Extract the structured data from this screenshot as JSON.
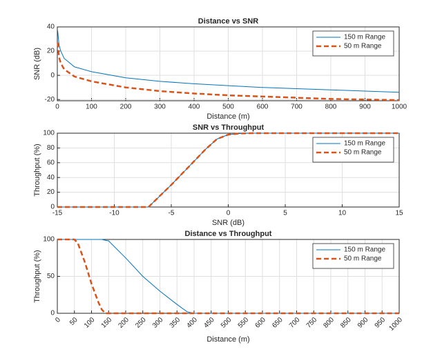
{
  "chart_data": [
    {
      "type": "line",
      "title": "Distance vs SNR",
      "xlabel": "Distance (m)",
      "ylabel": "SNR (dB)",
      "x": [
        1,
        5,
        10,
        20,
        50,
        100,
        200,
        300,
        400,
        500,
        600,
        700,
        800,
        900,
        1000
      ],
      "series": [
        {
          "name": "150 m Range",
          "color": "#0072bd",
          "style": "solid",
          "values": [
            37,
            25,
            20,
            14,
            7,
            3,
            -2,
            -5,
            -7,
            -8.5,
            -10,
            -11,
            -12,
            -13,
            -14
          ]
        },
        {
          "name": "50 m Range",
          "color": "#d95319",
          "style": "dashed",
          "values": [
            27,
            15,
            10,
            5,
            -1,
            -5,
            -10,
            -13,
            -15,
            -16.5,
            -17.5,
            -18.5,
            -19.5,
            -20,
            -20.5
          ]
        }
      ],
      "xlim": [
        0,
        1000
      ],
      "ylim": [
        -21,
        40
      ],
      "xticks": [
        0,
        100,
        200,
        300,
        400,
        500,
        600,
        700,
        800,
        900,
        1000
      ],
      "yticks": [
        -20,
        0,
        20,
        40
      ],
      "grid": true,
      "legend": "northeast"
    },
    {
      "type": "line",
      "title": "SNR vs Throughput",
      "xlabel": "SNR (dB)",
      "ylabel": "Throughput (%)",
      "x": [
        -15,
        -7,
        -6,
        -5,
        -4,
        -3,
        -2,
        -1,
        0,
        1,
        2,
        15
      ],
      "series": [
        {
          "name": "150 m Range",
          "color": "#0072bd",
          "style": "solid",
          "values": [
            0,
            0,
            15,
            30,
            46,
            62,
            78,
            92,
            98,
            99.5,
            100,
            100
          ]
        },
        {
          "name": "50 m Range",
          "color": "#d95319",
          "style": "dashed",
          "values": [
            0,
            0,
            15,
            30,
            46,
            62,
            78,
            92,
            98,
            99.5,
            100,
            100
          ]
        }
      ],
      "xlim": [
        -15,
        15
      ],
      "ylim": [
        0,
        100
      ],
      "xticks": [
        -15,
        -10,
        -5,
        0,
        5,
        10,
        15
      ],
      "yticks": [
        0,
        20,
        40,
        60,
        80,
        100
      ],
      "grid": true,
      "legend": "northeast"
    },
    {
      "type": "line",
      "title": "Distance vs Throughput",
      "xlabel": "Distance (m)",
      "ylabel": "Throughput (%)",
      "x": [
        0,
        50,
        60,
        80,
        100,
        120,
        130,
        140,
        150,
        200,
        250,
        300,
        350,
        380,
        400,
        1000
      ],
      "series": [
        {
          "name": "150 m Range",
          "color": "#0072bd",
          "style": "solid",
          "values": [
            100,
            100,
            100,
            100,
            100,
            100,
            100,
            99,
            98,
            75,
            50,
            30,
            12,
            2,
            0,
            0
          ]
        },
        {
          "name": "50 m Range",
          "color": "#d95319",
          "style": "dashed",
          "values": [
            100,
            100,
            95,
            70,
            40,
            15,
            5,
            0,
            0,
            0,
            0,
            0,
            0,
            0,
            0,
            0
          ]
        }
      ],
      "xlim": [
        0,
        1000
      ],
      "ylim": [
        0,
        100
      ],
      "xticks": [
        0,
        50,
        100,
        150,
        200,
        250,
        300,
        350,
        400,
        450,
        500,
        550,
        600,
        650,
        700,
        750,
        800,
        850,
        900,
        950,
        1000
      ],
      "yticks": [
        0,
        50,
        100
      ],
      "xtick_rotation": 45,
      "grid": true,
      "legend": "northeast"
    }
  ]
}
